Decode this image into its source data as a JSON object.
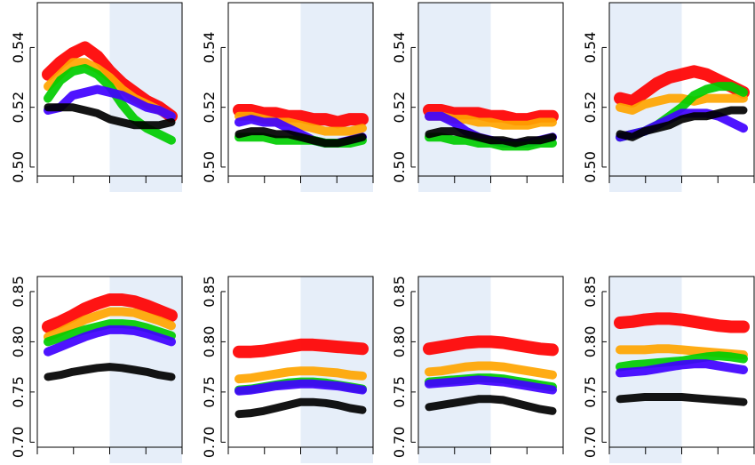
{
  "figure": {
    "layout": "2 rows x 4 columns of line panels"
  },
  "colors": {
    "red": "#ff0000",
    "orange": "#ffa500",
    "green": "#00cc00",
    "blue": "#3f00ff",
    "black": "#000000",
    "shade": "#e6eef9"
  },
  "chart_data": [
    {
      "type": "line",
      "panel": "top-1",
      "ylim": [
        0.497,
        0.555
      ],
      "yticks": [
        0.5,
        0.52,
        0.54
      ],
      "ytick_labels": [
        "0.50",
        "0.52",
        "0.54"
      ],
      "xlim": [
        0,
        1
      ],
      "shaded_x": [
        0.5,
        1
      ],
      "x": [
        0,
        0.1,
        0.2,
        0.3,
        0.4,
        0.5,
        0.6,
        0.7,
        0.8,
        0.9,
        1.0
      ],
      "series": [
        {
          "color": "red",
          "values": [
            0.531,
            0.535,
            0.538,
            0.54,
            0.537,
            0.532,
            0.528,
            0.525,
            0.522,
            0.52,
            0.517
          ]
        },
        {
          "color": "orange",
          "values": [
            0.527,
            0.531,
            0.535,
            0.535,
            0.533,
            0.53,
            0.526,
            0.523,
            0.521,
            0.519,
            0.517
          ]
        },
        {
          "color": "green",
          "values": [
            0.523,
            0.529,
            0.532,
            0.533,
            0.531,
            0.527,
            0.521,
            0.516,
            0.513,
            0.511,
            0.509
          ]
        },
        {
          "color": "blue",
          "values": [
            0.519,
            0.52,
            0.524,
            0.525,
            0.526,
            0.525,
            0.524,
            0.522,
            0.52,
            0.519,
            0.517
          ]
        },
        {
          "color": "black",
          "values": [
            0.52,
            0.52,
            0.52,
            0.519,
            0.518,
            0.516,
            0.515,
            0.514,
            0.514,
            0.514,
            0.515
          ]
        }
      ]
    },
    {
      "type": "line",
      "panel": "top-2",
      "ylim": [
        0.497,
        0.555
      ],
      "yticks": [
        0.5,
        0.52,
        0.54
      ],
      "ytick_labels": [
        "0.50",
        "0.52",
        "0.54"
      ],
      "xlim": [
        0,
        1
      ],
      "shaded_x": [
        0.5,
        1
      ],
      "x": [
        0,
        0.1,
        0.2,
        0.3,
        0.4,
        0.5,
        0.6,
        0.7,
        0.8,
        0.9,
        1.0
      ],
      "series": [
        {
          "color": "red",
          "values": [
            0.519,
            0.519,
            0.518,
            0.518,
            0.517,
            0.517,
            0.516,
            0.516,
            0.515,
            0.516,
            0.516
          ]
        },
        {
          "color": "orange",
          "values": [
            0.517,
            0.517,
            0.516,
            0.515,
            0.515,
            0.514,
            0.513,
            0.512,
            0.512,
            0.512,
            0.513
          ]
        },
        {
          "color": "blue",
          "values": [
            0.515,
            0.516,
            0.515,
            0.515,
            0.513,
            0.511,
            0.509,
            0.508,
            0.508,
            0.509,
            0.51
          ]
        },
        {
          "color": "green",
          "values": [
            0.51,
            0.51,
            0.51,
            0.509,
            0.509,
            0.509,
            0.509,
            0.508,
            0.508,
            0.508,
            0.509
          ]
        },
        {
          "color": "black",
          "values": [
            0.511,
            0.512,
            0.512,
            0.511,
            0.511,
            0.51,
            0.509,
            0.508,
            0.508,
            0.509,
            0.51
          ]
        }
      ]
    },
    {
      "type": "line",
      "panel": "top-3",
      "ylim": [
        0.497,
        0.555
      ],
      "yticks": [
        0.5,
        0.52,
        0.54
      ],
      "ytick_labels": [
        "0.50",
        "0.52",
        "0.54"
      ],
      "xlim": [
        0,
        1
      ],
      "shaded_x": [
        0,
        0.5
      ],
      "x": [
        0,
        0.1,
        0.2,
        0.3,
        0.4,
        0.5,
        0.6,
        0.7,
        0.8,
        0.9,
        1.0
      ],
      "series": [
        {
          "color": "red",
          "values": [
            0.519,
            0.519,
            0.518,
            0.518,
            0.518,
            0.517,
            0.517,
            0.516,
            0.516,
            0.517,
            0.517
          ]
        },
        {
          "color": "orange",
          "values": [
            0.517,
            0.517,
            0.516,
            0.516,
            0.515,
            0.515,
            0.514,
            0.514,
            0.514,
            0.515,
            0.515
          ]
        },
        {
          "color": "blue",
          "values": [
            0.517,
            0.517,
            0.515,
            0.512,
            0.51,
            0.509,
            0.508,
            0.508,
            0.508,
            0.509,
            0.51
          ]
        },
        {
          "color": "green",
          "values": [
            0.51,
            0.51,
            0.509,
            0.509,
            0.508,
            0.508,
            0.507,
            0.507,
            0.507,
            0.508,
            0.508
          ]
        },
        {
          "color": "black",
          "values": [
            0.511,
            0.512,
            0.512,
            0.511,
            0.51,
            0.509,
            0.509,
            0.508,
            0.509,
            0.509,
            0.51
          ]
        }
      ]
    },
    {
      "type": "line",
      "panel": "top-4",
      "ylim": [
        0.497,
        0.555
      ],
      "yticks": [
        0.5,
        0.52,
        0.54
      ],
      "ytick_labels": [
        "0.50",
        "0.52",
        "0.54"
      ],
      "xlim": [
        0,
        1
      ],
      "shaded_x": [
        0,
        0.5
      ],
      "x": [
        0,
        0.1,
        0.2,
        0.3,
        0.4,
        0.5,
        0.6,
        0.7,
        0.8,
        0.9,
        1.0
      ],
      "series": [
        {
          "color": "red",
          "values": [
            0.523,
            0.522,
            0.525,
            0.528,
            0.53,
            0.531,
            0.532,
            0.531,
            0.529,
            0.527,
            0.525
          ]
        },
        {
          "color": "orange",
          "values": [
            0.52,
            0.519,
            0.521,
            0.522,
            0.523,
            0.523,
            0.522,
            0.523,
            0.523,
            0.523,
            0.523
          ]
        },
        {
          "color": "green",
          "values": [
            0.51,
            0.511,
            0.512,
            0.514,
            0.517,
            0.52,
            0.524,
            0.526,
            0.527,
            0.527,
            0.525
          ]
        },
        {
          "color": "blue",
          "values": [
            0.51,
            0.511,
            0.512,
            0.514,
            0.516,
            0.518,
            0.518,
            0.518,
            0.517,
            0.515,
            0.513
          ]
        },
        {
          "color": "black",
          "values": [
            0.511,
            0.51,
            0.512,
            0.513,
            0.514,
            0.516,
            0.517,
            0.517,
            0.518,
            0.519,
            0.519
          ]
        }
      ]
    },
    {
      "type": "line",
      "panel": "bottom-1",
      "ylim": [
        0.695,
        0.865
      ],
      "yticks": [
        0.7,
        0.75,
        0.8,
        0.85
      ],
      "ytick_labels": [
        "0.70",
        "0.75",
        "0.80",
        "0.85"
      ],
      "xlim": [
        0,
        1
      ],
      "shaded_x": [
        0.5,
        1
      ],
      "x": [
        0,
        0.1,
        0.2,
        0.3,
        0.4,
        0.5,
        0.6,
        0.7,
        0.8,
        0.9,
        1.0
      ],
      "series": [
        {
          "color": "red",
          "values": [
            0.815,
            0.82,
            0.826,
            0.833,
            0.838,
            0.842,
            0.842,
            0.84,
            0.836,
            0.831,
            0.826
          ]
        },
        {
          "color": "orange",
          "values": [
            0.805,
            0.81,
            0.816,
            0.822,
            0.826,
            0.83,
            0.83,
            0.829,
            0.825,
            0.821,
            0.816
          ]
        },
        {
          "color": "green",
          "values": [
            0.8,
            0.804,
            0.808,
            0.812,
            0.815,
            0.818,
            0.818,
            0.817,
            0.814,
            0.81,
            0.806
          ]
        },
        {
          "color": "blue",
          "values": [
            0.79,
            0.795,
            0.8,
            0.805,
            0.809,
            0.812,
            0.812,
            0.811,
            0.808,
            0.804,
            0.8
          ]
        },
        {
          "color": "black",
          "values": [
            0.765,
            0.767,
            0.77,
            0.772,
            0.774,
            0.775,
            0.774,
            0.772,
            0.77,
            0.767,
            0.765
          ]
        }
      ]
    },
    {
      "type": "line",
      "panel": "bottom-2",
      "ylim": [
        0.695,
        0.865
      ],
      "yticks": [
        0.7,
        0.75,
        0.8,
        0.85
      ],
      "ytick_labels": [
        "0.70",
        "0.75",
        "0.80",
        "0.85"
      ],
      "xlim": [
        0,
        1
      ],
      "shaded_x": [
        0.5,
        1
      ],
      "x": [
        0,
        0.1,
        0.2,
        0.3,
        0.4,
        0.5,
        0.6,
        0.7,
        0.8,
        0.9,
        1.0
      ],
      "series": [
        {
          "color": "red",
          "values": [
            0.79,
            0.79,
            0.791,
            0.793,
            0.795,
            0.797,
            0.797,
            0.796,
            0.795,
            0.794,
            0.793
          ]
        },
        {
          "color": "orange",
          "values": [
            0.763,
            0.764,
            0.766,
            0.768,
            0.77,
            0.771,
            0.771,
            0.77,
            0.769,
            0.767,
            0.766
          ]
        },
        {
          "color": "green",
          "values": [
            0.752,
            0.753,
            0.755,
            0.757,
            0.759,
            0.76,
            0.76,
            0.759,
            0.757,
            0.755,
            0.753
          ]
        },
        {
          "color": "blue",
          "values": [
            0.751,
            0.752,
            0.754,
            0.756,
            0.757,
            0.758,
            0.758,
            0.757,
            0.756,
            0.754,
            0.752
          ]
        },
        {
          "color": "black",
          "values": [
            0.728,
            0.729,
            0.731,
            0.734,
            0.737,
            0.74,
            0.74,
            0.739,
            0.737,
            0.734,
            0.732
          ]
        }
      ]
    },
    {
      "type": "line",
      "panel": "bottom-3",
      "ylim": [
        0.695,
        0.865
      ],
      "yticks": [
        0.7,
        0.75,
        0.8,
        0.85
      ],
      "ytick_labels": [
        "0.70",
        "0.75",
        "0.80",
        "0.85"
      ],
      "xlim": [
        0,
        1
      ],
      "shaded_x": [
        0,
        0.5
      ],
      "x": [
        0,
        0.1,
        0.2,
        0.3,
        0.4,
        0.5,
        0.6,
        0.7,
        0.8,
        0.9,
        1.0
      ],
      "series": [
        {
          "color": "red",
          "values": [
            0.793,
            0.795,
            0.797,
            0.799,
            0.8,
            0.8,
            0.799,
            0.797,
            0.795,
            0.793,
            0.792
          ]
        },
        {
          "color": "orange",
          "values": [
            0.77,
            0.771,
            0.773,
            0.775,
            0.776,
            0.776,
            0.775,
            0.773,
            0.771,
            0.769,
            0.767
          ]
        },
        {
          "color": "green",
          "values": [
            0.76,
            0.761,
            0.762,
            0.763,
            0.764,
            0.764,
            0.763,
            0.761,
            0.759,
            0.757,
            0.755
          ]
        },
        {
          "color": "blue",
          "values": [
            0.758,
            0.759,
            0.76,
            0.761,
            0.762,
            0.761,
            0.76,
            0.758,
            0.756,
            0.754,
            0.752
          ]
        },
        {
          "color": "black",
          "values": [
            0.735,
            0.737,
            0.739,
            0.741,
            0.743,
            0.743,
            0.742,
            0.739,
            0.736,
            0.733,
            0.731
          ]
        }
      ]
    },
    {
      "type": "line",
      "panel": "bottom-4",
      "ylim": [
        0.695,
        0.865
      ],
      "yticks": [
        0.7,
        0.75,
        0.8,
        0.85
      ],
      "ytick_labels": [
        "0.70",
        "0.75",
        "0.80",
        "0.85"
      ],
      "xlim": [
        0,
        1
      ],
      "shaded_x": [
        0,
        0.5
      ],
      "x": [
        0,
        0.1,
        0.2,
        0.3,
        0.4,
        0.5,
        0.6,
        0.7,
        0.8,
        0.9,
        1.0
      ],
      "series": [
        {
          "color": "red",
          "values": [
            0.819,
            0.82,
            0.822,
            0.823,
            0.823,
            0.822,
            0.82,
            0.818,
            0.816,
            0.815,
            0.815
          ]
        },
        {
          "color": "orange",
          "values": [
            0.792,
            0.792,
            0.792,
            0.793,
            0.793,
            0.792,
            0.791,
            0.79,
            0.789,
            0.788,
            0.787
          ]
        },
        {
          "color": "green",
          "values": [
            0.775,
            0.777,
            0.778,
            0.779,
            0.78,
            0.781,
            0.783,
            0.785,
            0.786,
            0.785,
            0.783
          ]
        },
        {
          "color": "blue",
          "values": [
            0.769,
            0.77,
            0.771,
            0.773,
            0.775,
            0.777,
            0.778,
            0.778,
            0.776,
            0.774,
            0.772
          ]
        },
        {
          "color": "black",
          "values": [
            0.743,
            0.744,
            0.745,
            0.745,
            0.745,
            0.745,
            0.744,
            0.743,
            0.742,
            0.741,
            0.74
          ]
        }
      ]
    }
  ]
}
